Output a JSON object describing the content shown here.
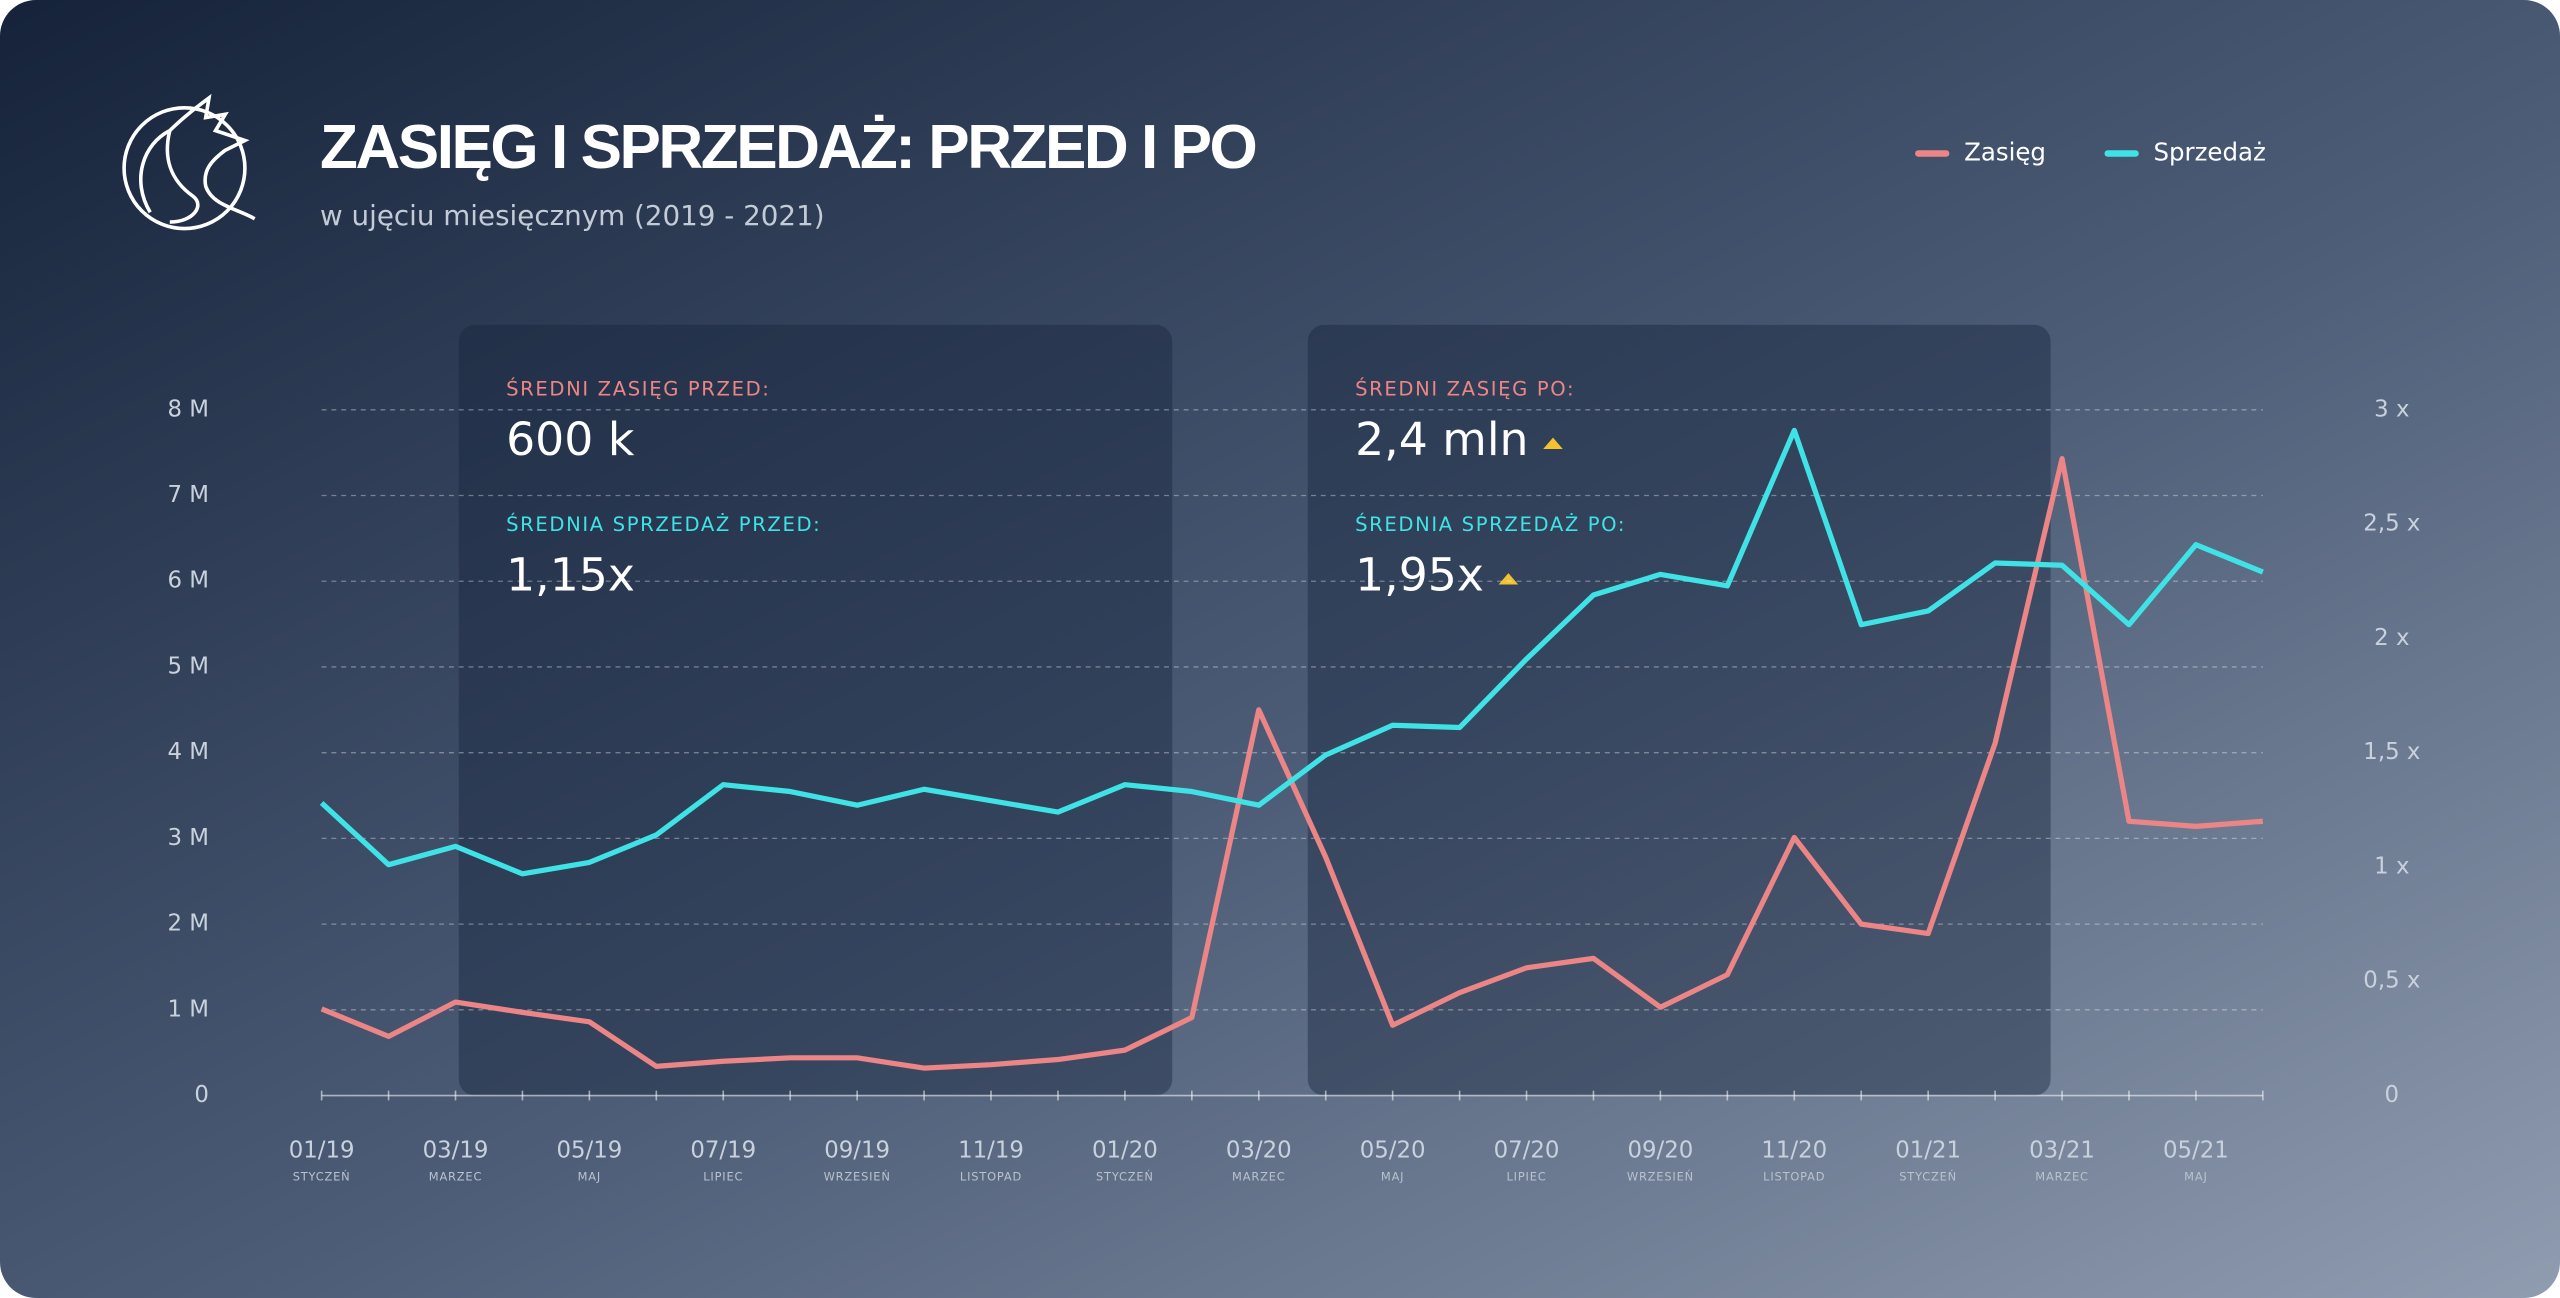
{
  "chart_data": {
    "type": "line",
    "title": "ZASIĘG I SPRZEDAŻ: PRZED I PO",
    "subtitle": "w ujęciu miesięcznym (2019 - 2021)",
    "categories": [
      "01/19",
      null,
      "03/19",
      null,
      "05/19",
      null,
      "07/19",
      null,
      "09/19",
      null,
      "11/19",
      null,
      "01/20",
      null,
      "03/20",
      null,
      "05/20",
      null,
      "07/20",
      null,
      "09/20",
      null,
      "11/20",
      null,
      "01/21",
      null,
      "03/21",
      null,
      "05/21",
      null
    ],
    "category_sublabels": [
      "STYCZEŃ",
      null,
      "MARZEC",
      null,
      "MAJ",
      null,
      "LIPIEC",
      null,
      "WRZESIEŃ",
      null,
      "LISTOPAD",
      null,
      "STYCZEŃ",
      null,
      "MARZEC",
      null,
      "MAJ",
      null,
      "LIPIEC",
      null,
      "WRZESIEŃ",
      null,
      "LISTOPAD",
      null,
      "STYCZEŃ",
      null,
      "MARZEC",
      null,
      "MAJ",
      null
    ],
    "series": [
      {
        "name": "Zasięg",
        "color": "#ec8585",
        "axis": "y",
        "values": [
          1.01,
          0.69,
          1.09,
          0.97,
          0.86,
          0.34,
          0.4,
          0.44,
          0.44,
          0.32,
          0.36,
          0.42,
          0.53,
          0.91,
          4.5,
          2.78,
          0.82,
          1.2,
          1.49,
          1.6,
          1.03,
          1.41,
          3.01,
          2.0,
          1.89,
          4.11,
          7.43,
          3.2,
          3.14,
          3.2
        ]
      },
      {
        "name": "Sprzedaż",
        "color": "#3fe3e6",
        "axis": "y2",
        "values": [
          1.28,
          1.01,
          1.09,
          0.97,
          1.02,
          1.14,
          1.36,
          1.33,
          1.27,
          1.34,
          1.29,
          1.24,
          1.36,
          1.33,
          1.27,
          1.49,
          1.62,
          1.61,
          1.91,
          2.19,
          2.28,
          2.23,
          2.91,
          2.06,
          2.12,
          2.33,
          2.32,
          2.06,
          2.41,
          2.29
        ]
      }
    ],
    "ylim": [
      0,
      8
    ],
    "yticks": [
      0,
      {
        "value": 1,
        "label": "1 M"
      },
      {
        "value": 2,
        "label": "2 M"
      },
      {
        "value": 3,
        "label": "3 M"
      },
      {
        "value": 4,
        "label": "4 M"
      },
      {
        "value": 5,
        "label": "5 M"
      },
      {
        "value": 6,
        "label": "6 M"
      },
      {
        "value": 7,
        "label": "7 M"
      },
      {
        "value": 8,
        "label": "8 M"
      }
    ],
    "y2lim": [
      0,
      3
    ],
    "y2ticks": [
      0,
      {
        "value": 0.5,
        "label": "0,5 x"
      },
      {
        "value": 1,
        "label": "1 x"
      },
      {
        "value": 1.5,
        "label": "1,5  x"
      },
      {
        "value": 2,
        "label": "2 x"
      },
      {
        "value": 2.5,
        "label": "2,5 x"
      },
      {
        "value": 3,
        "label": "3 x"
      }
    ],
    "grid": true,
    "legend": "top-right",
    "panels": [
      {
        "items": [
          {
            "label": "ŚREDNI ZASIĘG PRZED:",
            "value": "600 k"
          },
          {
            "label": "ŚREDNIA SPRZEDAŻ PRZED:",
            "value": "1,15x"
          }
        ]
      },
      {
        "items": [
          {
            "label": "ŚREDNI ZASIĘG PO:",
            "value": "2,4 mln"
          },
          {
            "label": "ŚREDNIA SPRZEDAŻ PO:",
            "value": "1,95x"
          }
        ]
      }
    ]
  }
}
